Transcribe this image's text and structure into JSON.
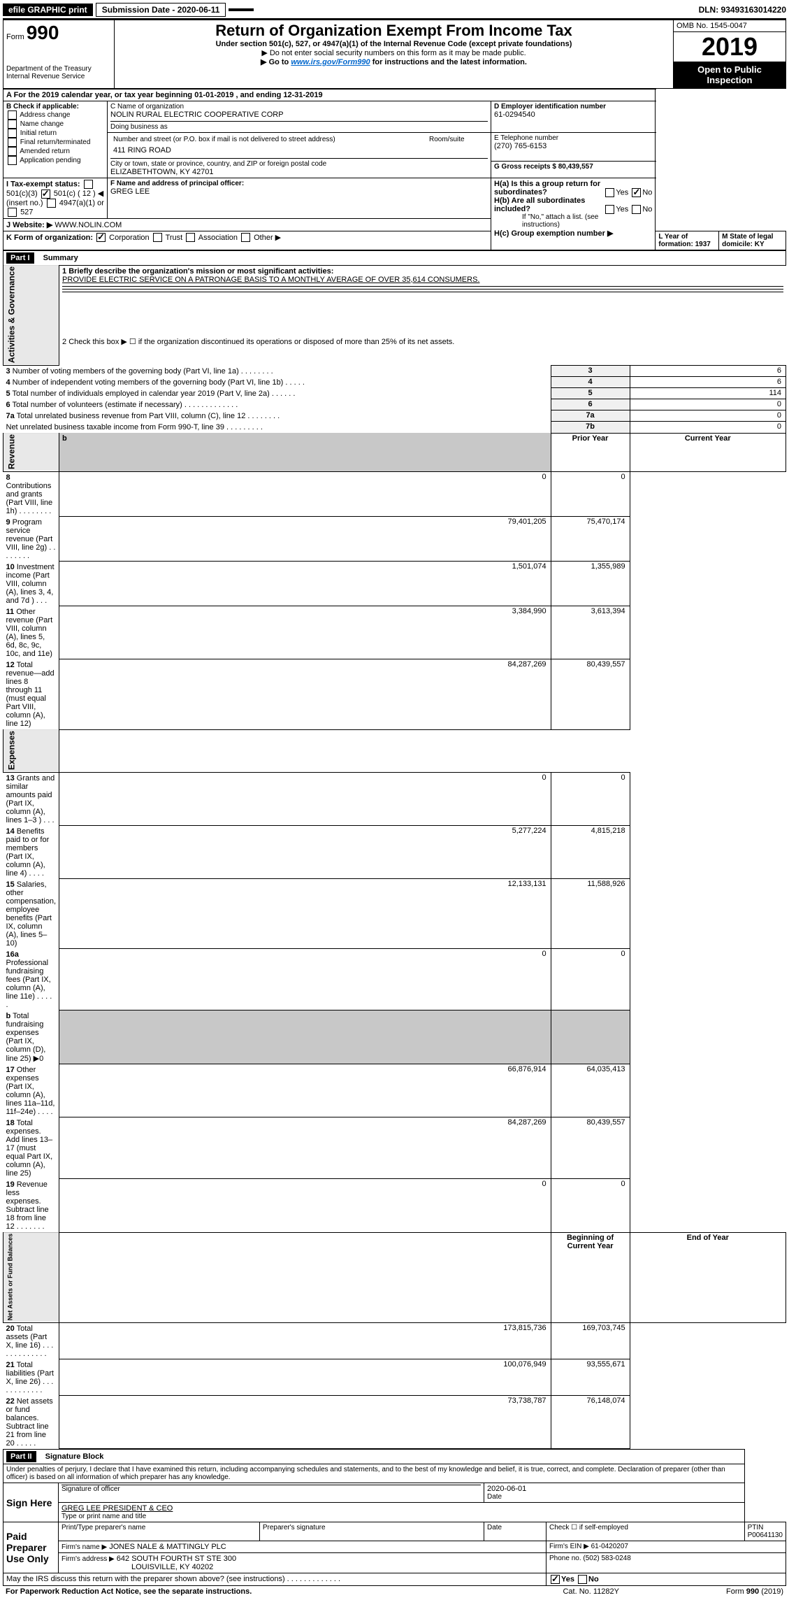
{
  "top_bar": {
    "efile": "efile GRAPHIC print",
    "submission_label": "Submission Date - 2020-06-11",
    "dln": "DLN: 93493163014220"
  },
  "header": {
    "form_prefix": "Form",
    "form_number": "990",
    "dept": "Department of the Treasury\nInternal Revenue Service",
    "title": "Return of Organization Exempt From Income Tax",
    "subtitle1": "Under section 501(c), 527, or 4947(a)(1) of the Internal Revenue Code (except private foundations)",
    "subtitle2": "▶ Do not enter social security numbers on this form as it may be made public.",
    "subtitle3_prefix": "▶ Go to ",
    "subtitle3_link": "www.irs.gov/Form990",
    "subtitle3_suffix": " for instructions and the latest information.",
    "omb": "OMB No. 1545-0047",
    "year": "2019",
    "open_public": "Open to Public Inspection"
  },
  "period": {
    "text_a": "A For the 2019 calendar year, or tax year beginning 01-01-2019    , and ending 12-31-2019"
  },
  "box_b": {
    "label": "B Check if applicable:",
    "opts": [
      "Address change",
      "Name change",
      "Initial return",
      "Final return/terminated",
      "Amended return",
      "Application pending"
    ]
  },
  "box_c": {
    "name_label": "C Name of organization",
    "name": "NOLIN RURAL ELECTRIC COOPERATIVE CORP",
    "dba_label": "Doing business as",
    "addr_label": "Number and street (or P.O. box if mail is not delivered to street address)",
    "room_label": "Room/suite",
    "addr": "411 RING ROAD",
    "city_label": "City or town, state or province, country, and ZIP or foreign postal code",
    "city": "ELIZABETHTOWN, KY  42701"
  },
  "box_d": {
    "label": "D Employer identification number",
    "value": "61-0294540"
  },
  "box_e": {
    "label": "E Telephone number",
    "value": "(270) 765-6153"
  },
  "box_g": {
    "label": "G Gross receipts $ 80,439,557"
  },
  "box_f": {
    "label": "F  Name and address of principal officer:",
    "value": "GREG LEE"
  },
  "box_h": {
    "ha": "H(a)  Is this a group return for subordinates?",
    "hb": "H(b)  Are all subordinates included?",
    "hb_note": "If \"No,\" attach a list. (see instructions)",
    "hc": "H(c)  Group exemption number ▶",
    "yes": "Yes",
    "no": "No"
  },
  "box_i": {
    "label": "I   Tax-exempt status:",
    "o1": "501(c)(3)",
    "o2_pre": "501(c) ( 12 ) ◀ (insert no.)",
    "o3": "4947(a)(1) or",
    "o4": "527"
  },
  "box_j": {
    "label": "J   Website: ▶",
    "value": "WWW.NOLIN.COM"
  },
  "box_k": {
    "label": "K Form of organization:",
    "opts": [
      "Corporation",
      "Trust",
      "Association",
      "Other ▶"
    ]
  },
  "box_l": {
    "label": "L Year of formation: 1937"
  },
  "box_m": {
    "label": "M State of legal domicile: KY"
  },
  "part1": {
    "header": "Part I",
    "title": "Summary",
    "line1_label": "1  Briefly describe the organization's mission or most significant activities:",
    "line1_value": "PROVIDE ELECTRIC SERVICE ON A PATRONAGE BASIS TO A MONTHLY AVERAGE OF OVER 35,614 CONSUMERS.",
    "line2": "2   Check this box ▶ ☐  if the organization discontinued its operations or disposed of more than 25% of its net assets.",
    "gov_label": "Activities & Governance",
    "rev_label": "Revenue",
    "exp_label": "Expenses",
    "net_label": "Net Assets or Fund Balances",
    "prior_year": "Prior Year",
    "current_year": "Current Year",
    "begin_year": "Beginning of Current Year",
    "end_year": "End of Year",
    "rows_gov": [
      {
        "n": "3",
        "t": "Number of voting members of the governing body (Part VI, line 1a)  .   .   .   .   .   .   .   .",
        "l": "3",
        "v": "6"
      },
      {
        "n": "4",
        "t": "Number of independent voting members of the governing body (Part VI, line 1b)  .   .   .   .   .",
        "l": "4",
        "v": "6"
      },
      {
        "n": "5",
        "t": "Total number of individuals employed in calendar year 2019 (Part V, line 2a)  .   .   .   .   .   .",
        "l": "5",
        "v": "114"
      },
      {
        "n": "6",
        "t": "Total number of volunteers (estimate if necessary)  .   .   .   .   .   .   .   .   .   .   .   .   .",
        "l": "6",
        "v": "0"
      },
      {
        "n": "7a",
        "t": "Total unrelated business revenue from Part VIII, column (C), line 12  .   .   .   .   .   .   .   .",
        "l": "7a",
        "v": "0"
      },
      {
        "n": "",
        "t": "Net unrelated business taxable income from Form 990-T, line 39  .   .   .   .   .   .   .   .   .",
        "l": "7b",
        "v": "0"
      }
    ],
    "rows_rev": [
      {
        "n": "8",
        "t": "Contributions and grants (Part VIII, line 1h)  .   .   .   .   .   .   .   .",
        "p": "0",
        "c": "0"
      },
      {
        "n": "9",
        "t": "Program service revenue (Part VIII, line 2g)  .   .   .   .   .   .   .   .",
        "p": "79,401,205",
        "c": "75,470,174"
      },
      {
        "n": "10",
        "t": "Investment income (Part VIII, column (A), lines 3, 4, and 7d )  .   .   .",
        "p": "1,501,074",
        "c": "1,355,989"
      },
      {
        "n": "11",
        "t": "Other revenue (Part VIII, column (A), lines 5, 6d, 8c, 9c, 10c, and 11e)",
        "p": "3,384,990",
        "c": "3,613,394"
      },
      {
        "n": "12",
        "t": "Total revenue—add lines 8 through 11 (must equal Part VIII, column (A), line 12)",
        "p": "84,287,269",
        "c": "80,439,557"
      }
    ],
    "rows_exp": [
      {
        "n": "13",
        "t": "Grants and similar amounts paid (Part IX, column (A), lines 1–3 )  .   .   .",
        "p": "0",
        "c": "0"
      },
      {
        "n": "14",
        "t": "Benefits paid to or for members (Part IX, column (A), line 4)  .   .   .   .",
        "p": "5,277,224",
        "c": "4,815,218"
      },
      {
        "n": "15",
        "t": "Salaries, other compensation, employee benefits (Part IX, column (A), lines 5–10)",
        "p": "12,133,131",
        "c": "11,588,926"
      },
      {
        "n": "16a",
        "t": "Professional fundraising fees (Part IX, column (A), line 11e)  .   .   .   .   .",
        "p": "0",
        "c": "0"
      },
      {
        "n": "b",
        "t": "Total fundraising expenses (Part IX, column (D), line 25) ▶0",
        "p": "",
        "c": "",
        "shade": true
      },
      {
        "n": "17",
        "t": "Other expenses (Part IX, column (A), lines 11a–11d, 11f–24e)  .   .   .   .",
        "p": "66,876,914",
        "c": "64,035,413"
      },
      {
        "n": "18",
        "t": "Total expenses. Add lines 13–17 (must equal Part IX, column (A), line 25)",
        "p": "84,287,269",
        "c": "80,439,557"
      },
      {
        "n": "19",
        "t": "Revenue less expenses. Subtract line 18 from line 12  .   .   .   .   .   .   .",
        "p": "0",
        "c": "0"
      }
    ],
    "rows_net": [
      {
        "n": "20",
        "t": "Total assets (Part X, line 16)  .   .   .   .   .   .   .   .   .   .   .   .   .",
        "p": "173,815,736",
        "c": "169,703,745"
      },
      {
        "n": "21",
        "t": "Total liabilities (Part X, line 26)  .   .   .   .   .   .   .   .   .   .   .   .",
        "p": "100,076,949",
        "c": "93,555,671"
      },
      {
        "n": "22",
        "t": "Net assets or fund balances. Subtract line 21 from line 20  .   .   .   .   .",
        "p": "73,738,787",
        "c": "76,148,074"
      }
    ]
  },
  "part2": {
    "header": "Part II",
    "title": "Signature Block",
    "perjury": "Under penalties of perjury, I declare that I have examined this return, including accompanying schedules and statements, and to the best of my knowledge and belief, it is true, correct, and complete. Declaration of preparer (other than officer) is based on all information of which preparer has any knowledge.",
    "sign_here": "Sign Here",
    "sig_officer": "Signature of officer",
    "sig_date": "2020-06-01",
    "date_label": "Date",
    "officer_name": "GREG LEE  PRESIDENT & CEO",
    "type_name": "Type or print name and title",
    "paid": "Paid Preparer Use Only",
    "prep_name_label": "Print/Type preparer's name",
    "prep_sig_label": "Preparer's signature",
    "prep_date_label": "Date",
    "check_self": "Check ☐ if self-employed",
    "ptin_label": "PTIN",
    "ptin": "P00641130",
    "firm_name_label": "Firm's name    ▶",
    "firm_name": "JONES NALE & MATTINGLY PLC",
    "firm_ein_label": "Firm's EIN ▶",
    "firm_ein": "61-0420207",
    "firm_addr_label": "Firm's address ▶",
    "firm_addr1": "642 SOUTH FOURTH ST STE 300",
    "firm_addr2": "LOUISVILLE, KY  40202",
    "phone_label": "Phone no. (502) 583-0248",
    "discuss": "May the IRS discuss this return with the preparer shown above? (see instructions)  .   .   .   .   .   .   .   .   .   .   .   .   .",
    "yes": "Yes",
    "no": "No"
  },
  "footer": {
    "pra": "For Paperwork Reduction Act Notice, see the separate instructions.",
    "cat": "Cat. No. 11282Y",
    "form": "Form 990 (2019)"
  }
}
